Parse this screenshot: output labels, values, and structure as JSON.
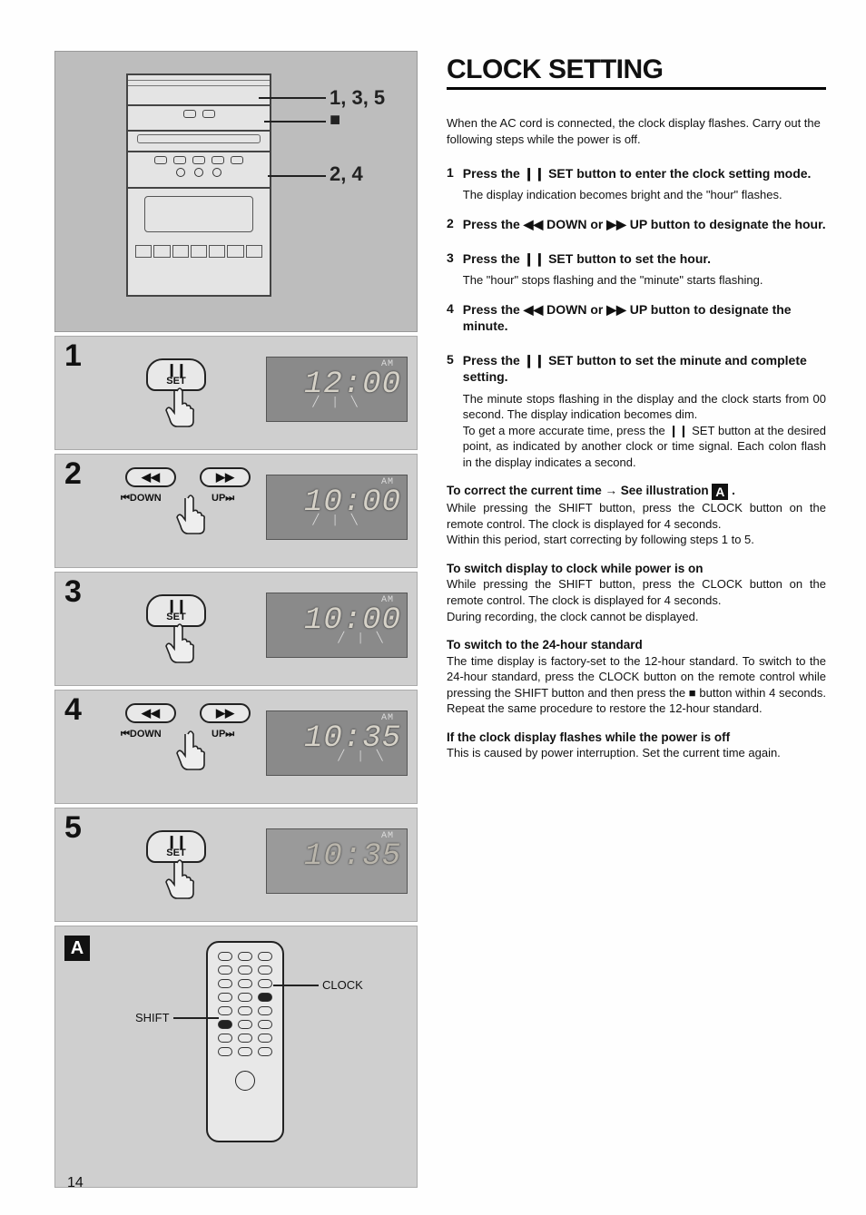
{
  "page_number": "14",
  "title": "CLOCK SETTING",
  "intro": "When the AC cord is connected, the clock display flashes. Carry out the following steps while the power is off.",
  "steps": [
    {
      "num": "1",
      "head_pre": "Press the ",
      "head_sym": "❙❙",
      "head_post": " SET button to enter the clock setting mode.",
      "desc": "The display indication becomes bright and the \"hour\" flashes."
    },
    {
      "num": "2",
      "head_pre": "Press the ",
      "head_sym": "◀◀",
      "head_mid": " DOWN or ",
      "head_sym2": "▶▶",
      "head_post": " UP button to designate the hour.",
      "desc": ""
    },
    {
      "num": "3",
      "head_pre": "Press the ",
      "head_sym": "❙❙",
      "head_post": " SET button to set the hour.",
      "desc": "The \"hour\" stops flashing and the \"minute\" starts flashing."
    },
    {
      "num": "4",
      "head_pre": "Press the ",
      "head_sym": "◀◀",
      "head_mid": " DOWN or ",
      "head_sym2": "▶▶",
      "head_post": " UP button to designate the minute.",
      "desc": ""
    },
    {
      "num": "5",
      "head_pre": "Press the ",
      "head_sym": "❙❙",
      "head_post": " SET button to set the minute and complete setting.",
      "desc": "The minute stops flashing in the display and the clock starts from 00 second. The display indication becomes dim.\nTo get a more accurate time, press the ❙❙ SET button at the desired point, as indicated by another clock or time signal. Each colon flash in the display indicates a second."
    }
  ],
  "notes": [
    {
      "head": "To correct the current time → See illustration ",
      "head_badge": "A",
      "head_tail": " .",
      "body": "While pressing the SHIFT button, press the CLOCK button on the remote control. The clock is displayed for 4 seconds.\nWithin this period, start correcting by following steps 1 to 5."
    },
    {
      "head": "To switch display to clock while power is on",
      "body": "While pressing the SHIFT button, press the CLOCK button on the remote control. The clock is displayed for 4 seconds.\nDuring recording, the clock cannot be displayed."
    },
    {
      "head": "To switch to the 24-hour standard",
      "body": "The time display is factory-set to the 12-hour standard. To switch to the 24-hour standard, press the CLOCK button on the remote control while pressing the SHIFT button and then press the ■ button within 4 seconds. Repeat the same procedure to restore the 12-hour standard."
    },
    {
      "head": "If the clock display flashes while the power is off",
      "body": "This is caused by power interruption. Set the current time again."
    }
  ],
  "overview": {
    "label_top": "1, 3, 5",
    "label_mid_sym": "■",
    "label_bottom": "2, 4"
  },
  "diagrams": {
    "set_label_sym": "❙❙",
    "set_label_text": "SET",
    "down_sym": "◀◀",
    "down_text": "⏮DOWN",
    "up_sym": "▶▶",
    "up_text": "UP⏭",
    "ampm": "AM",
    "displays": [
      "12:00",
      "10:00",
      "10:00",
      "10:35",
      "10:35"
    ]
  },
  "remote": {
    "badge": "A",
    "label_clock": "CLOCK",
    "label_shift": "SHIFT"
  },
  "colors": {
    "diag_bg": "#cfcfcf",
    "panel_bg": "#bdbdbd",
    "text": "#111111"
  }
}
